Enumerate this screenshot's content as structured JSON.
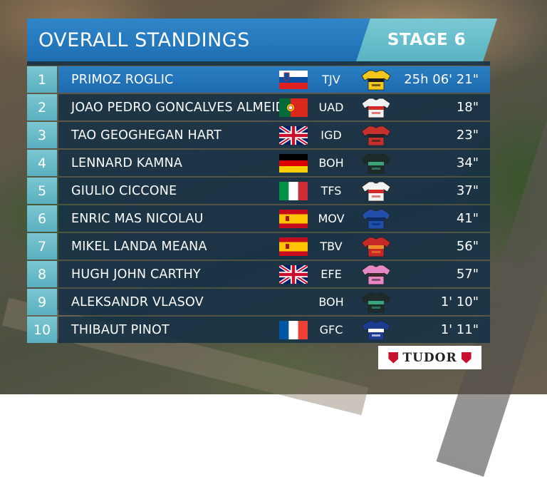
{
  "header": {
    "title": "OVERALL STANDINGS",
    "stage": "STAGE 6"
  },
  "sponsor": {
    "name": "TUDOR"
  },
  "standings": [
    {
      "rank": "1",
      "name": "PRIMOZ ROGLIC",
      "team": "TJV",
      "time": "25h 06' 21\"",
      "flag": "slovenia",
      "jersey": "yellow-black"
    },
    {
      "rank": "2",
      "name": "JOAO PEDRO GONCALVES ALMEIDA",
      "team": "UAD",
      "time": "18\"",
      "flag": "portugal",
      "jersey": "white-red"
    },
    {
      "rank": "3",
      "name": "TAO GEOGHEGAN HART",
      "team": "IGD",
      "time": "23\"",
      "flag": "uk",
      "jersey": "red-black"
    },
    {
      "rank": "4",
      "name": "LENNARD KAMNA",
      "team": "BOH",
      "time": "34\"",
      "flag": "germany",
      "jersey": "black-green"
    },
    {
      "rank": "5",
      "name": "GIULIO CICCONE",
      "team": "TFS",
      "time": "37\"",
      "flag": "italy",
      "jersey": "white-red"
    },
    {
      "rank": "6",
      "name": "ENRIC MAS NICOLAU",
      "team": "MOV",
      "time": "41\"",
      "flag": "spain",
      "jersey": "blue"
    },
    {
      "rank": "7",
      "name": "MIKEL LANDA MEANA",
      "team": "TBV",
      "time": "56\"",
      "flag": "spain",
      "jersey": "red-orange"
    },
    {
      "rank": "8",
      "name": "HUGH JOHN CARTHY",
      "team": "EFE",
      "time": "57\"",
      "flag": "uk",
      "jersey": "pink"
    },
    {
      "rank": "9",
      "name": "ALEKSANDR VLASOV",
      "team": "BOH",
      "time": "1' 10\"",
      "flag": "none",
      "jersey": "black-green"
    },
    {
      "rank": "10",
      "name": "THIBAUT PINOT",
      "team": "GFC",
      "time": "1' 11\"",
      "flag": "france",
      "jersey": "navy"
    }
  ],
  "colors": {
    "header_blue": "#1d6fb2",
    "stage_teal": "#58b3c2",
    "row_dark": "#14304a",
    "leader_row": "#1d6ab0"
  }
}
